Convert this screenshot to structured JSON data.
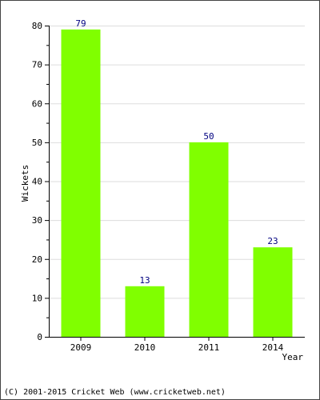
{
  "chart_data": {
    "type": "bar",
    "categories": [
      "2009",
      "2010",
      "2011",
      "2014"
    ],
    "values": [
      79,
      13,
      50,
      23
    ],
    "xlabel": "Year",
    "ylabel": "Wickets",
    "ylim": [
      0,
      80
    ],
    "yticks": [
      0,
      10,
      20,
      30,
      40,
      50,
      60,
      70,
      80
    ],
    "grid": true,
    "bar_color": "#80ff00",
    "value_label_color": "#000080"
  },
  "footer": "(C) 2001-2015 Cricket Web (www.cricketweb.net)"
}
